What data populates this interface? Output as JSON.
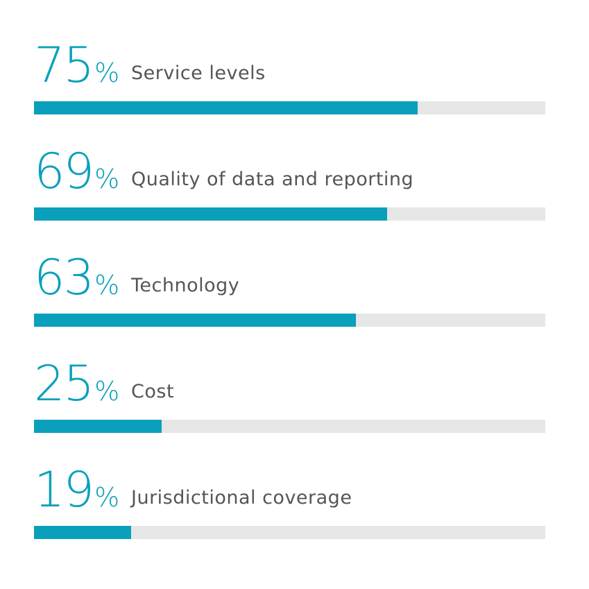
{
  "chart_data": {
    "type": "bar",
    "orientation": "horizontal",
    "categories": [
      "Service levels",
      "Quality of data and reporting",
      "Technology",
      "Cost",
      "Jurisdictional coverage"
    ],
    "values": [
      75,
      69,
      63,
      25,
      19
    ],
    "value_labels": [
      "75",
      "69",
      "63",
      "25",
      "19"
    ],
    "unit": "%",
    "xlim": [
      0,
      100
    ],
    "grid": false,
    "colors": {
      "bar": "#0aa0bb",
      "track": "#e6e6e6",
      "value_text": "#0aa0bb",
      "label_text": "#555555"
    }
  }
}
